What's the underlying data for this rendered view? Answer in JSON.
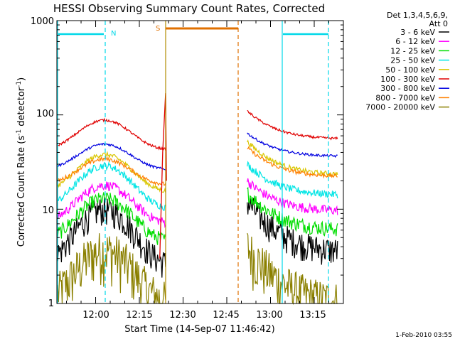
{
  "chart_data": {
    "type": "line",
    "title": "HESSI Observing Summary Count Rates, Corrected",
    "xlabel": "Start Time (14-Sep-07 11:46:42)",
    "ylabel_main": "Corrected Count Rate (s",
    "ylabel_sup1": "-1",
    "ylabel_mid": " detector",
    "ylabel_sup2": "-1",
    "ylabel_end": ")",
    "y_scale": "log",
    "ylim": [
      1,
      1000
    ],
    "xlim": [
      "11:46:42",
      "13:25:00"
    ],
    "x_ticks": [
      "12:00",
      "12:15",
      "12:30",
      "12:45",
      "13:00",
      "13:15"
    ],
    "y_ticks": [
      "1",
      "10",
      "100",
      "1000"
    ],
    "footer_date": "1-Feb-2010 03:55",
    "legend": {
      "header1": "Det 1,3,4,5,6,9,",
      "header2": "Att 0",
      "placement": "outside-right"
    },
    "series": [
      {
        "name": "3 - 6 keV",
        "color": "#000000"
      },
      {
        "name": "6 - 12 keV",
        "color": "#ff00ff"
      },
      {
        "name": "12 - 25 keV",
        "color": "#00dd00"
      },
      {
        "name": "25 - 50 keV",
        "color": "#00e5e5"
      },
      {
        "name": "50 - 100 keV",
        "color": "#d9c600"
      },
      {
        "name": "100 - 300 keV",
        "color": "#e00000"
      },
      {
        "name": "300 - 800 keV",
        "color": "#0000e0"
      },
      {
        "name": "800 - 7000 keV",
        "color": "#ff8000"
      },
      {
        "name": "7000 - 20000 keV",
        "color": "#8b8000"
      }
    ],
    "markers": [
      {
        "label": "N",
        "color": "#00d8e8"
      },
      {
        "label": "S",
        "color": "#e07000"
      }
    ]
  }
}
